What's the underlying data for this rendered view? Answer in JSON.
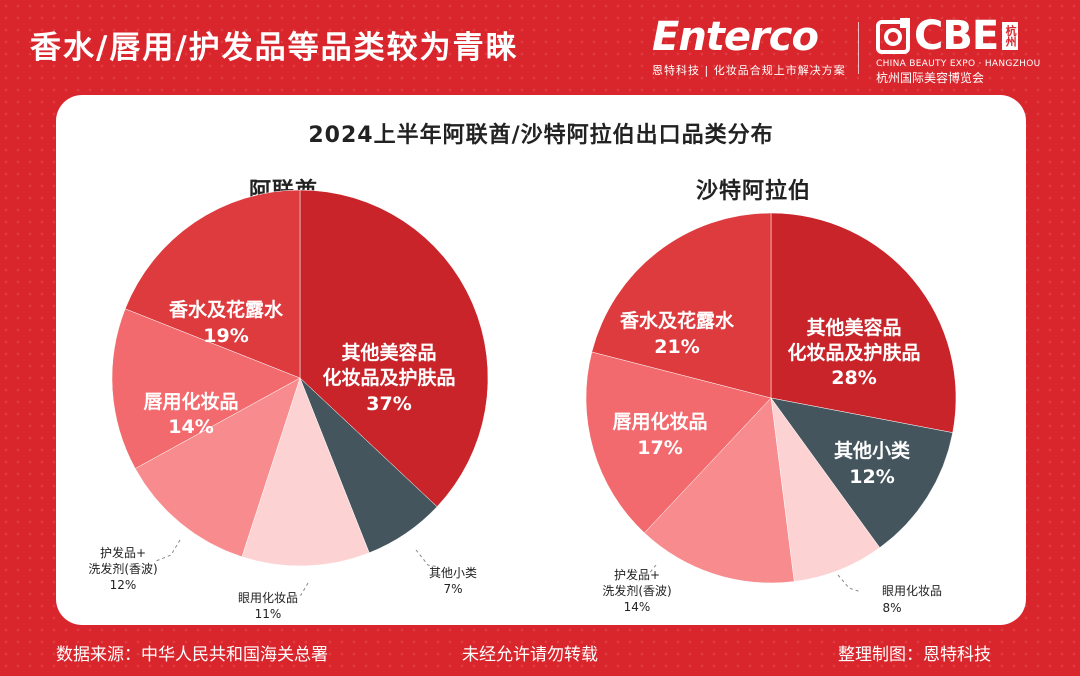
{
  "header": {
    "headline": "香水/唇用/护发品等品类较为青睐",
    "enterco_logo": "Enterco",
    "enterco_tagline": "恩特科技 | 化妆品合规上市解决方案",
    "cbe_logo": "CBE",
    "cbe_city": "杭州",
    "cbe_en": "CHINA BEAUTY EXPO · HANGZHOU",
    "cbe_cn": "杭州国际美容博览会"
  },
  "card": {
    "title": "2024上半年阿联酋/沙特阿拉伯出口品类分布"
  },
  "chart_data": [
    {
      "type": "pie",
      "title": "阿联酋",
      "slices": [
        {
          "label": "其他美容品化妆品及护肤品",
          "value": 37,
          "color": "#c8242a"
        },
        {
          "label": "其他小类",
          "value": 7,
          "color": "#44555d"
        },
        {
          "label": "眼用化妆品",
          "value": 11,
          "color": "#fcd2d3"
        },
        {
          "label": "护发品+洗发剂(香波)",
          "value": 12,
          "color": "#f78b8d"
        },
        {
          "label": "唇用化妆品",
          "value": 14,
          "color": "#f26a6d"
        },
        {
          "label": "香水及花露水",
          "value": 19,
          "color": "#de3b3f"
        }
      ],
      "labels": {
        "main_l1": "其他美容品",
        "main_l2": "化妆品及护肤品",
        "main_pct": "37%",
        "perfume_l1": "香水及花露水",
        "perfume_pct": "19%",
        "lip_l1": "唇用化妆品",
        "lip_pct": "14%",
        "other_l1": "其他小类",
        "other_pct": "7%",
        "eye_l1": "眼用化妆品",
        "eye_pct": "11%",
        "hair_l1": "护发品+",
        "hair_l2": "洗发剂(香波)",
        "hair_pct": "12%"
      }
    },
    {
      "type": "pie",
      "title": "沙特阿拉伯",
      "slices": [
        {
          "label": "其他美容品化妆品及护肤品",
          "value": 28,
          "color": "#c8242a"
        },
        {
          "label": "其他小类",
          "value": 12,
          "color": "#44555d"
        },
        {
          "label": "眼用化妆品",
          "value": 8,
          "color": "#fcd2d3"
        },
        {
          "label": "护发品+洗发剂(香波)",
          "value": 14,
          "color": "#f78b8d"
        },
        {
          "label": "唇用化妆品",
          "value": 17,
          "color": "#f26a6d"
        },
        {
          "label": "香水及花露水",
          "value": 21,
          "color": "#de3b3f"
        }
      ],
      "labels": {
        "main_l1": "其他美容品",
        "main_l2": "化妆品及护肤品",
        "main_pct": "28%",
        "perfume_l1": "香水及花露水",
        "perfume_pct": "21%",
        "lip_l1": "唇用化妆品",
        "lip_pct": "17%",
        "other_l1": "其他小类",
        "other_pct": "12%",
        "eye_l1": "眼用化妆品",
        "eye_pct": "8%",
        "hair_l1": "护发品+",
        "hair_l2": "洗发剂(香波)",
        "hair_pct": "14%"
      }
    }
  ],
  "footer": {
    "source": "数据来源：中华人民共和国海关总署",
    "rights": "未经允许请勿转载",
    "producer": "整理制图：恩特科技"
  }
}
